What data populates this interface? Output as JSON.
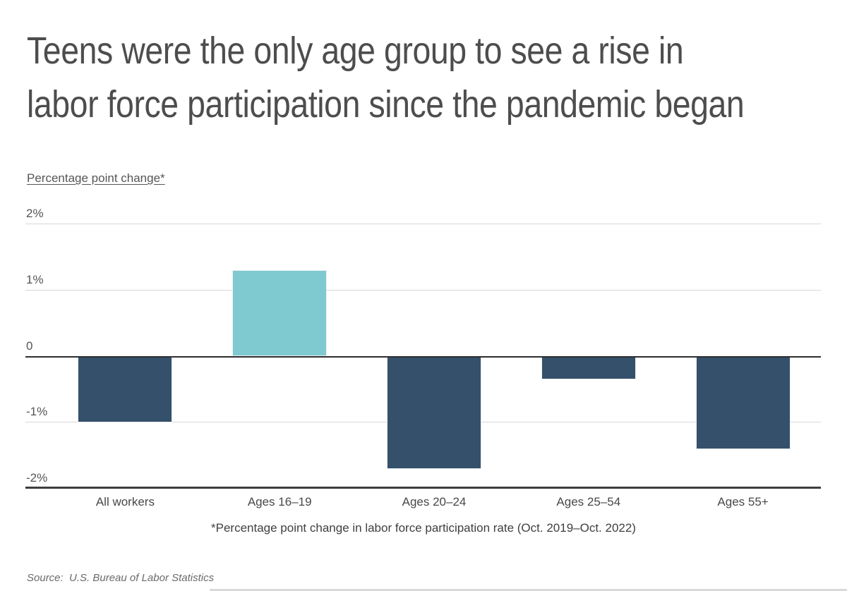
{
  "title": {
    "lines": [
      "Teens were the only age group to see a rise in",
      "labor force participation since the pandemic began"
    ]
  },
  "chart": {
    "axis_caption": "Percentage point change*",
    "footnote": "*Percentage point change in labor force participation rate (Oct. 2019–Oct. 2022)",
    "source": "Source:  U.S. Bureau of Labor Statistics"
  },
  "chart_data": {
    "type": "bar",
    "categories": [
      "All workers",
      "Ages 16–19",
      "Ages 20–24",
      "Ages 25–54",
      "Ages 55+"
    ],
    "values": [
      -1.0,
      1.3,
      -1.7,
      -0.35,
      -1.4
    ],
    "title": "Teens were the only age group to see a rise in labor force participation since the pandemic began",
    "xlabel": "",
    "ylabel": "Percentage point change*",
    "yticks": [
      {
        "label": "2%",
        "value": 2
      },
      {
        "label": "1%",
        "value": 1
      },
      {
        "label": "0",
        "value": 0
      },
      {
        "label": "-1%",
        "value": -1
      },
      {
        "label": "-2%",
        "value": -2
      }
    ],
    "ylim": [
      -2,
      2
    ],
    "grid": "horizontal",
    "legend": "none",
    "bar_colors": [
      "#35506b",
      "#7fc9d1",
      "#35506b",
      "#35506b",
      "#35506b"
    ],
    "colors": {
      "negative_bar": "#35506b",
      "positive_bar": "#7fc9d1",
      "gridline": "#d8d8d8",
      "zero_line": "#2e2e2e",
      "axis_line": "#3d3d3d",
      "title_text": "#4d4d4d",
      "label_text": "#555555"
    }
  }
}
